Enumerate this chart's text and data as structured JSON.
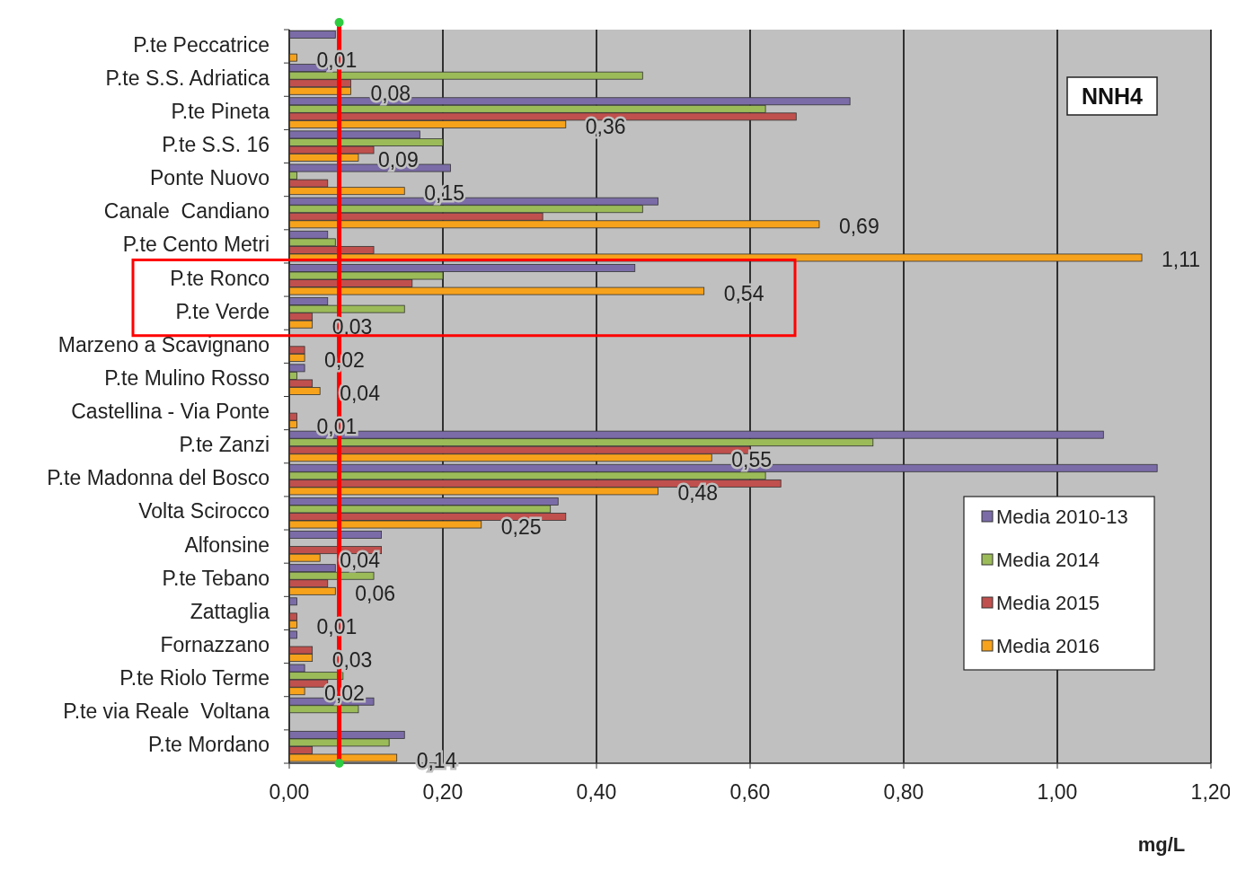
{
  "chart_data": {
    "type": "bar",
    "orientation": "horizontal",
    "xlabel": "mg/L",
    "annotations": [
      "NNH4"
    ],
    "categories": [
      "P.te Peccatrice",
      "P.te S.S. Adriatica",
      "P.te Pineta",
      "P.te S.S. 16",
      "Ponte Nuovo",
      "Canale  Candiano",
      "P.te Cento Metri",
      "P.te Ronco",
      "P.te Verde",
      "Marzeno a Scavignano",
      "P.te Mulino Rosso",
      "Castellina - Via Ponte",
      "P.te Zanzi",
      "P.te Madonna del Bosco",
      "Volta Scirocco",
      "Alfonsine",
      "P.te Tebano",
      "Zattaglia",
      "Fornazzano",
      "P.te Riolo Terme",
      "P.te via Reale  Voltana",
      "P.te Mordano"
    ],
    "series": [
      {
        "name": "Media 2010-13",
        "color": "#7b6ca8",
        "values": [
          0.06,
          0.05,
          0.73,
          0.17,
          0.21,
          0.48,
          0.05,
          0.45,
          0.05,
          null,
          0.02,
          null,
          1.06,
          1.13,
          0.35,
          0.12,
          0.06,
          0.01,
          0.01,
          0.02,
          0.11,
          0.15
        ]
      },
      {
        "name": "Media 2014",
        "color": "#9bbb59",
        "values": [
          null,
          0.46,
          0.62,
          0.2,
          0.01,
          0.46,
          0.06,
          0.2,
          0.15,
          null,
          0.01,
          null,
          0.76,
          0.62,
          0.34,
          null,
          0.11,
          null,
          null,
          0.07,
          0.09,
          0.13
        ]
      },
      {
        "name": "Media 2015",
        "color": "#c0504d",
        "values": [
          null,
          0.08,
          0.66,
          0.11,
          0.05,
          0.33,
          0.11,
          0.16,
          0.03,
          0.02,
          0.03,
          0.01,
          0.6,
          0.64,
          0.36,
          0.12,
          0.05,
          0.01,
          0.03,
          0.05,
          null,
          0.03
        ]
      },
      {
        "name": "Media 2016",
        "color": "#f7a21b",
        "values": [
          0.01,
          0.08,
          0.36,
          0.09,
          0.15,
          0.69,
          1.11,
          0.54,
          0.03,
          0.02,
          0.04,
          0.01,
          0.55,
          0.48,
          0.25,
          0.04,
          0.06,
          0.01,
          0.03,
          0.02,
          null,
          0.14
        ],
        "value_labels": [
          "0,01",
          "0,08",
          "0,36",
          "0,09",
          "0,15",
          "0,69",
          "1,11",
          "0,54",
          "0,03",
          "0,02",
          "0,04",
          "0,01",
          "0,55",
          "0,48",
          "0,25",
          "0,04",
          "0,06",
          "0,01",
          "0,03",
          "0,02",
          null,
          "0,14"
        ]
      }
    ],
    "xlim": [
      0,
      1.2
    ],
    "xticks": [
      {
        "value": 0,
        "label": "0,00"
      },
      {
        "value": 0.2,
        "label": "0,20"
      },
      {
        "value": 0.4,
        "label": "0,40"
      },
      {
        "value": 0.6,
        "label": "0,60"
      },
      {
        "value": 0.8,
        "label": "0,80"
      },
      {
        "value": 1,
        "label": "1,00"
      },
      {
        "value": 1.2,
        "label": "1,20"
      }
    ],
    "grid": "x",
    "legend": "right",
    "ref_lines": [
      {
        "axis": "x",
        "value": 0.065,
        "color": "#ff0000"
      }
    ]
  }
}
